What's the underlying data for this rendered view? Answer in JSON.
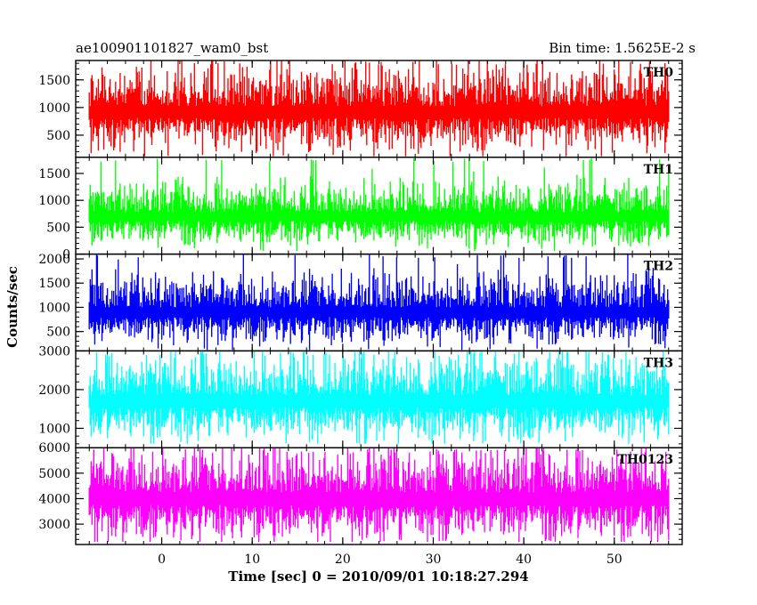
{
  "chart_data": {
    "type": "line",
    "title_left": "ae100901101827_wam0_bst",
    "title_right": "Bin time: 1.5625E-2 s",
    "xlabel": "Time [sec] 0 = 2010/09/01 10:18:27.294",
    "ylabel": "Counts/sec",
    "xlim": [
      -9.5,
      57.5
    ],
    "xticks": [
      0,
      10,
      20,
      30,
      40,
      50
    ],
    "x_range": [
      -8,
      56
    ],
    "grid": false,
    "panels": [
      {
        "name": "TH0",
        "color": "#ff0000",
        "ylim": [
          100,
          1850
        ],
        "yticks": [
          500,
          1000,
          1500
        ],
        "mean": 920,
        "spread": 420,
        "min": 120,
        "max": 1850
      },
      {
        "name": "TH1",
        "color": "#00ff00",
        "ylim": [
          0,
          1800
        ],
        "yticks": [
          0,
          500,
          1000,
          1500
        ],
        "mean": 700,
        "spread": 320,
        "min": 60,
        "max": 1780
      },
      {
        "name": "TH2",
        "color": "#0000ff",
        "ylim": [
          100,
          2100
        ],
        "yticks": [
          500,
          1000,
          1500,
          2000
        ],
        "mean": 900,
        "spread": 400,
        "min": 120,
        "max": 2100
      },
      {
        "name": "TH3",
        "color": "#00ffff",
        "ylim": [
          500,
          3000
        ],
        "yticks": [
          1000,
          2000,
          3000
        ],
        "mean": 1700,
        "spread": 620,
        "min": 600,
        "max": 3000
      },
      {
        "name": "TH0123",
        "color": "#ff00ff",
        "ylim": [
          2200,
          6000
        ],
        "yticks": [
          3000,
          4000,
          5000,
          6000
        ],
        "mean": 4000,
        "spread": 1000,
        "min": 2300,
        "max": 6000
      }
    ]
  }
}
